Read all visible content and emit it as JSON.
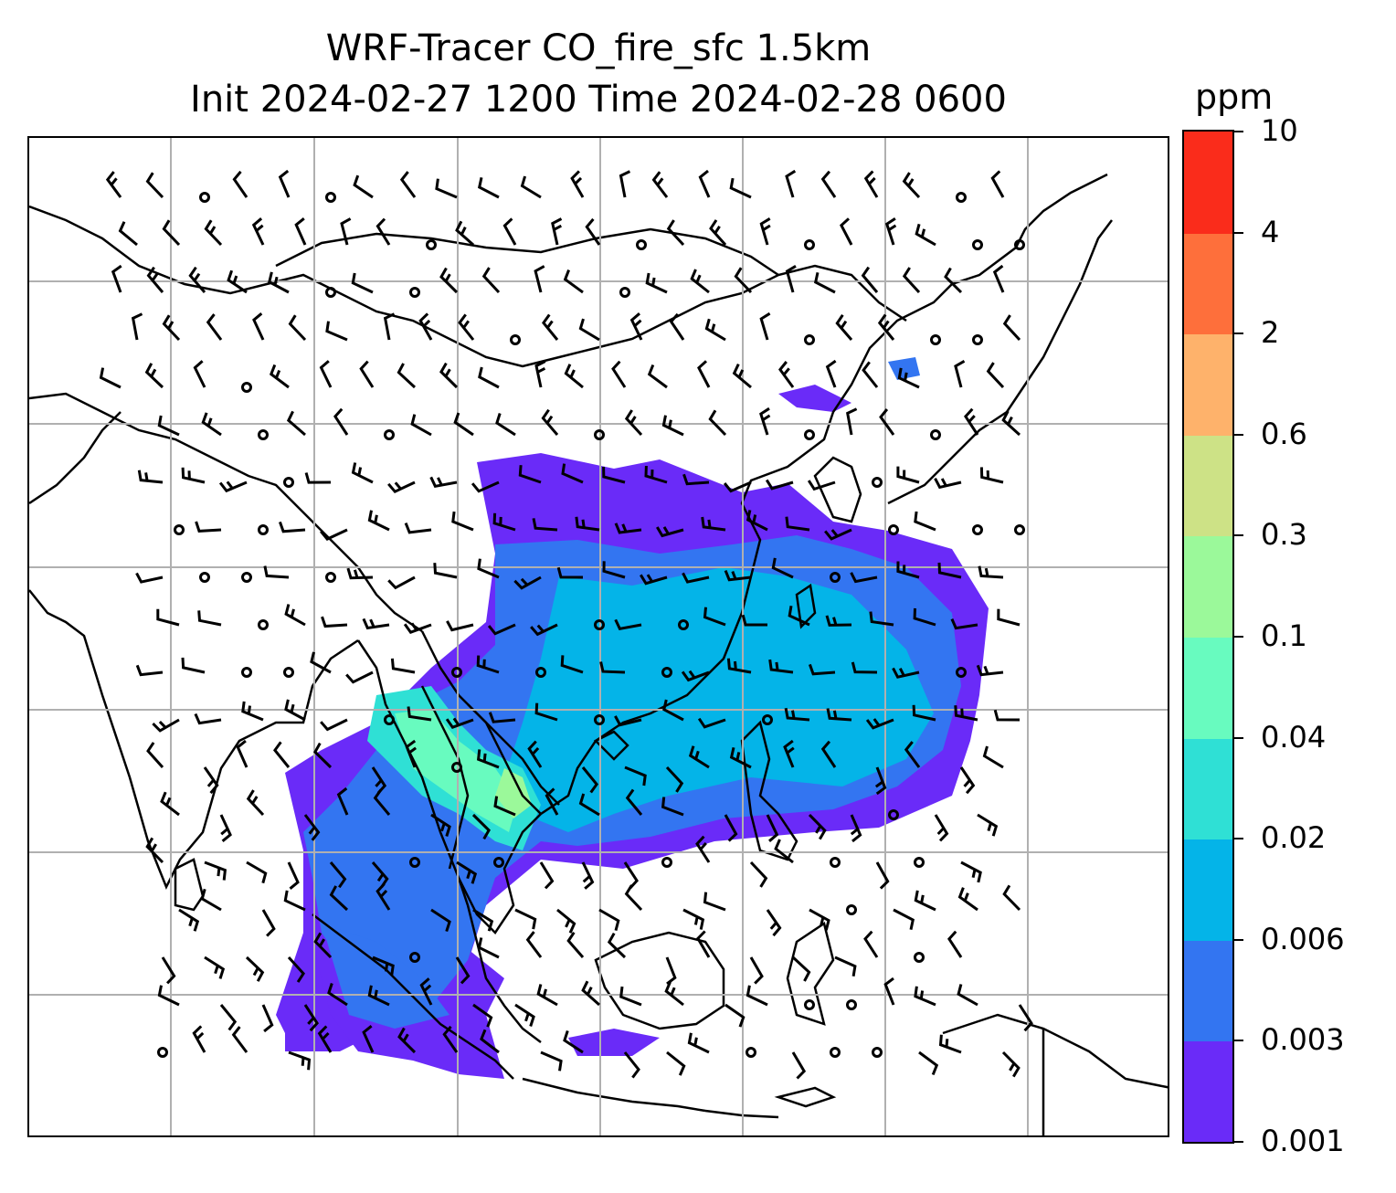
{
  "title": {
    "line1": "WRF-Tracer CO_fire_sfc 1.5km",
    "line2": "Init 2024-02-27 1200 Time 2024-02-28 0600"
  },
  "colorbar": {
    "unit": "ppm",
    "levels": [
      "0.001",
      "0.003",
      "0.006",
      "0.02",
      "0.04",
      "0.1",
      "0.3",
      "0.6",
      "2",
      "4",
      "10"
    ],
    "colors": [
      "#6a2bf8",
      "#3375f1",
      "#04b4e8",
      "#2fe0d5",
      "#68fbbf",
      "#9bf99a",
      "#cde286",
      "#feb26b",
      "#fe6f3b",
      "#fa2c1b"
    ]
  },
  "colors": {
    "coastline": "#000000",
    "gridline": "#b0b0b0",
    "barb": "#000000"
  }
}
